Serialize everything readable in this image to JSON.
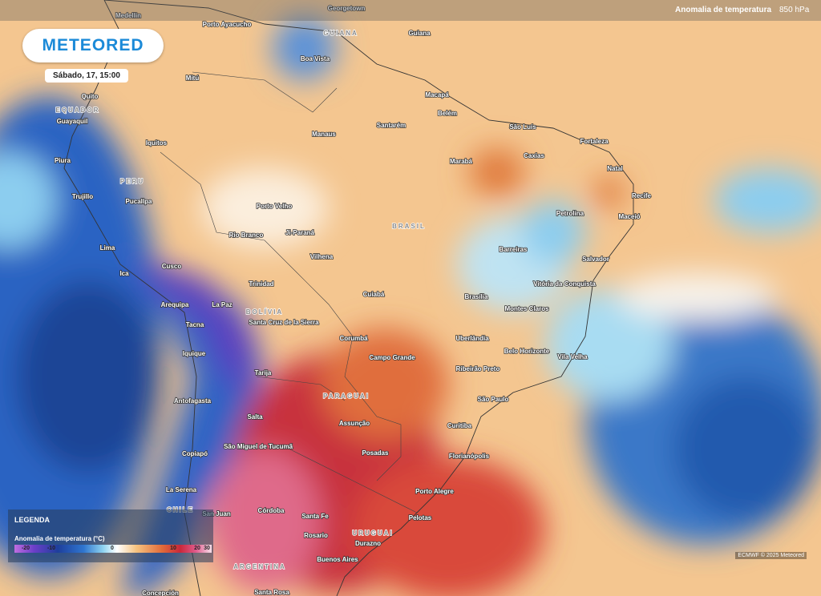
{
  "header": {
    "layer": "Anomalia de temperatura",
    "level": "850 hPa"
  },
  "logo": "METEORED",
  "timestamp": "Sábado, 17, 15:00",
  "legend": {
    "title": "LEGENDA",
    "label": "Anomalia de temperatura (°C)",
    "ticks": [
      -20,
      -10,
      0,
      10,
      20,
      30
    ]
  },
  "credit": "ECMWF © 2025 Meteored",
  "countries": [
    "EQUADOR",
    "PERU",
    "BRASIL",
    "BOLÍVIA",
    "PARAGUAI",
    "CHILE",
    "URUGUAI",
    "ARGENTINA",
    "GUIANA"
  ],
  "places": [
    "Medellin",
    "Porto Ayacucho",
    "Georgetown",
    "Guiana",
    "Boa Vista",
    "Mitú",
    "Quito",
    "Guayaquil",
    "Macapá",
    "Belém",
    "Santarém",
    "Manaus",
    "São Luís",
    "Fortaleza",
    "Iquitos",
    "Caxias",
    "Piura",
    "Marabá",
    "Natal",
    "Trujillo",
    "Pucallpa",
    "Recife",
    "Petrolina",
    "Maceió",
    "Porto Velho",
    "Rio Branco",
    "Ji-Paraná",
    "Lima",
    "Barreiras",
    "Salvador",
    "Vilhena",
    "Cusco",
    "Ica",
    "Trinidad",
    "Vitória da Conquista",
    "Cuiabá",
    "Brasília",
    "Arequipa",
    "La Paz",
    "Montes Claros",
    "Santa Cruz de la Sierra",
    "Tacna",
    "Uberlândia",
    "Iquique",
    "Corumbá",
    "Belo Horizonte",
    "Vila Velha",
    "Campo Grande",
    "Tarija",
    "Ribeirão Preto",
    "São Paulo",
    "Antofagasta",
    "Salta",
    "Assunção",
    "Curitiba",
    "São Miguel de Tucumã",
    "Posadas",
    "Copiapó",
    "Florianópolis",
    "Porto Alegre",
    "La Serena",
    "San Juan",
    "Córdoba",
    "Santa Fe",
    "Pelotas",
    "Rosario",
    "Durazno",
    "Buenos Aires",
    "Santa Rosa",
    "Concepción"
  ]
}
